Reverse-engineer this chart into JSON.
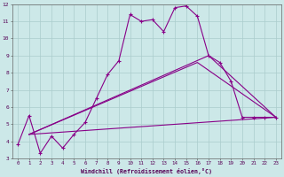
{
  "xlabel": "Windchill (Refroidissement éolien,°C)",
  "bg_color": "#cce8e8",
  "grid_color": "#aacccc",
  "line_color": "#880088",
  "xlim": [
    -0.5,
    23.5
  ],
  "ylim": [
    3,
    12
  ],
  "xticks": [
    0,
    1,
    2,
    3,
    4,
    5,
    6,
    7,
    8,
    9,
    10,
    11,
    12,
    13,
    14,
    15,
    16,
    17,
    18,
    19,
    20,
    21,
    22,
    23
  ],
  "yticks": [
    3,
    4,
    5,
    6,
    7,
    8,
    9,
    10,
    11,
    12
  ],
  "line1_x": [
    0,
    1,
    2,
    3,
    4,
    5,
    6,
    7,
    8,
    9,
    10,
    11,
    12,
    13,
    14,
    15,
    16,
    17,
    18,
    19,
    20,
    21,
    22,
    23
  ],
  "line1_y": [
    3.8,
    5.5,
    3.3,
    4.3,
    3.6,
    4.4,
    5.1,
    6.5,
    7.9,
    8.7,
    11.4,
    11.0,
    11.1,
    10.4,
    11.8,
    11.9,
    11.3,
    9.0,
    8.6,
    7.5,
    5.4,
    5.4,
    5.4,
    5.4
  ],
  "line2_x": [
    1,
    23
  ],
  "line2_y": [
    4.4,
    5.4
  ],
  "line3_x": [
    1,
    17,
    23
  ],
  "line3_y": [
    4.4,
    9.0,
    5.4
  ],
  "line4_x": [
    1,
    16,
    23
  ],
  "line4_y": [
    4.4,
    8.6,
    5.4
  ]
}
